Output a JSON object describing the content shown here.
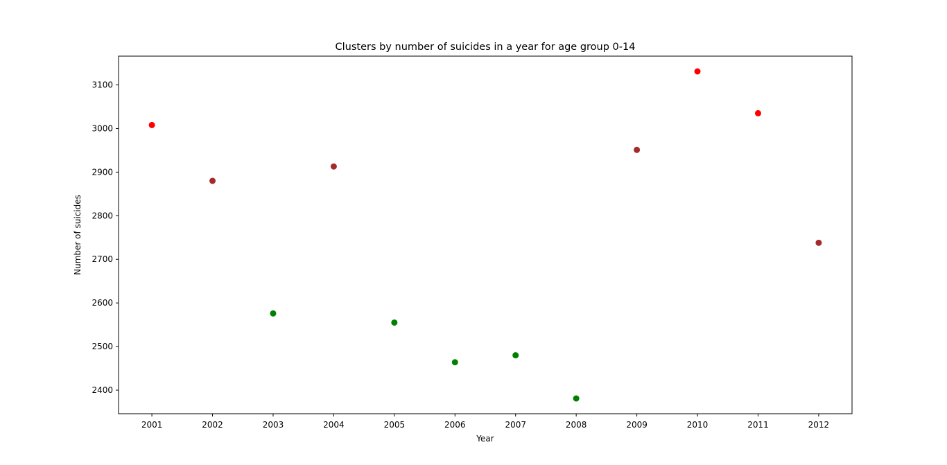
{
  "chart_data": {
    "type": "scatter",
    "title": "Clusters by number of suicides in a year for age group 0-14",
    "xlabel": "Year",
    "ylabel": "Number of suicides",
    "xlim": [
      2000.45,
      2012.55
    ],
    "ylim": [
      2346,
      3166
    ],
    "x_ticks": [
      2001,
      2002,
      2003,
      2004,
      2005,
      2006,
      2007,
      2008,
      2009,
      2010,
      2011,
      2012
    ],
    "y_ticks": [
      2400,
      2500,
      2600,
      2700,
      2800,
      2900,
      3000,
      3100
    ],
    "grid": false,
    "legend": null,
    "cluster_colors": {
      "high": "#ff0000",
      "mid": "#a52a2a",
      "low": "#008000"
    },
    "points": [
      {
        "x": 2001,
        "y": 3008,
        "cluster": "high"
      },
      {
        "x": 2002,
        "y": 2880,
        "cluster": "mid"
      },
      {
        "x": 2003,
        "y": 2576,
        "cluster": "low"
      },
      {
        "x": 2004,
        "y": 2913,
        "cluster": "mid"
      },
      {
        "x": 2005,
        "y": 2555,
        "cluster": "low"
      },
      {
        "x": 2006,
        "y": 2464,
        "cluster": "low"
      },
      {
        "x": 2007,
        "y": 2480,
        "cluster": "low"
      },
      {
        "x": 2008,
        "y": 2381,
        "cluster": "low"
      },
      {
        "x": 2009,
        "y": 2951,
        "cluster": "mid"
      },
      {
        "x": 2010,
        "y": 3131,
        "cluster": "high"
      },
      {
        "x": 2011,
        "y": 3035,
        "cluster": "high"
      },
      {
        "x": 2012,
        "y": 2738,
        "cluster": "mid"
      }
    ]
  }
}
